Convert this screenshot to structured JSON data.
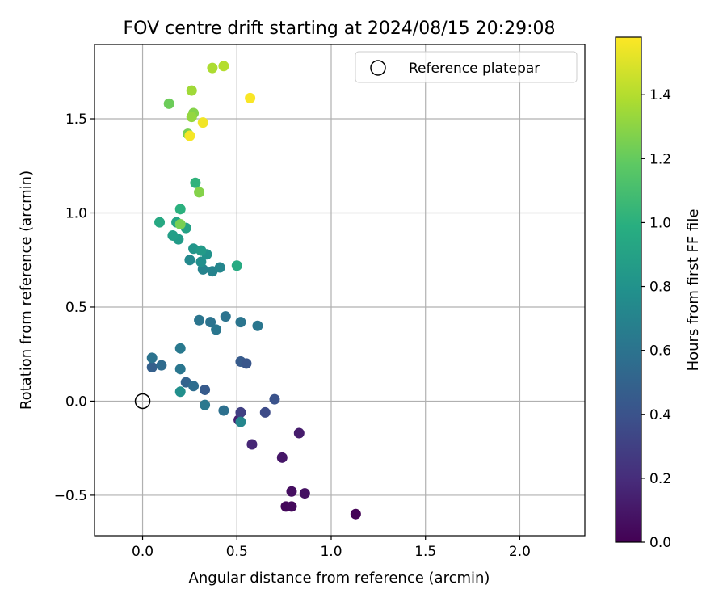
{
  "chart_data": {
    "type": "scatter",
    "title": "FOV centre drift starting at 2024/08/15 20:29:08",
    "xlabel": "Angular distance from reference (arcmin)",
    "ylabel": "Rotation from reference (arcmin)",
    "xlim": [
      -0.255,
      2.345
    ],
    "ylim": [
      -0.715,
      1.895
    ],
    "xticks": [
      0.0,
      0.5,
      1.0,
      1.5,
      2.0
    ],
    "xtick_labels": [
      "0.0",
      "0.5",
      "1.0",
      "1.5",
      "2.0"
    ],
    "yticks": [
      -0.5,
      0.0,
      0.5,
      1.0,
      1.5
    ],
    "ytick_labels": [
      "−0.5",
      "0.0",
      "0.5",
      "1.0",
      "1.5"
    ],
    "grid": true,
    "legend": {
      "placement": "upper right",
      "entries": [
        {
          "label": "Reference platepar",
          "marker": "open-circle"
        }
      ]
    },
    "reference_point": {
      "x": 0.0,
      "y": 0.0
    },
    "colorbar": {
      "label": "Hours from first FF file",
      "colormap": "viridis",
      "range": [
        0.0,
        1.58
      ],
      "ticks": [
        0.0,
        0.2,
        0.4,
        0.6,
        0.8,
        1.0,
        1.2,
        1.4
      ],
      "tick_labels": [
        "0.0",
        "0.2",
        "0.4",
        "0.6",
        "0.8",
        "1.0",
        "1.2",
        "1.4"
      ]
    },
    "points": [
      {
        "x": 1.13,
        "y": -0.6,
        "c": 0.01
      },
      {
        "x": 0.76,
        "y": -0.56,
        "c": 0.03
      },
      {
        "x": 0.79,
        "y": -0.56,
        "c": 0.04
      },
      {
        "x": 0.79,
        "y": -0.48,
        "c": 0.06
      },
      {
        "x": 0.86,
        "y": -0.49,
        "c": 0.07
      },
      {
        "x": 0.74,
        "y": -0.3,
        "c": 0.1
      },
      {
        "x": 0.83,
        "y": -0.17,
        "c": 0.12
      },
      {
        "x": 0.51,
        "y": -0.1,
        "c": 0.14
      },
      {
        "x": 0.58,
        "y": -0.23,
        "c": 0.17
      },
      {
        "x": 0.52,
        "y": -0.06,
        "c": 0.3
      },
      {
        "x": 0.65,
        "y": -0.06,
        "c": 0.36
      },
      {
        "x": 0.7,
        "y": 0.01,
        "c": 0.4
      },
      {
        "x": 0.52,
        "y": 0.21,
        "c": 0.45
      },
      {
        "x": 0.55,
        "y": 0.2,
        "c": 0.42
      },
      {
        "x": 0.33,
        "y": 0.06,
        "c": 0.45
      },
      {
        "x": 0.05,
        "y": 0.18,
        "c": 0.48
      },
      {
        "x": 0.23,
        "y": 0.1,
        "c": 0.5
      },
      {
        "x": 0.1,
        "y": 0.19,
        "c": 0.55
      },
      {
        "x": 0.27,
        "y": 0.08,
        "c": 0.56
      },
      {
        "x": 0.43,
        "y": -0.05,
        "c": 0.58
      },
      {
        "x": 0.05,
        "y": 0.23,
        "c": 0.6
      },
      {
        "x": 0.52,
        "y": -0.11,
        "c": 0.72
      },
      {
        "x": 0.2,
        "y": 0.17,
        "c": 0.62
      },
      {
        "x": 0.33,
        "y": -0.02,
        "c": 0.63
      },
      {
        "x": 0.2,
        "y": 0.28,
        "c": 0.64
      },
      {
        "x": 0.3,
        "y": 0.43,
        "c": 0.61
      },
      {
        "x": 0.36,
        "y": 0.42,
        "c": 0.6
      },
      {
        "x": 0.39,
        "y": 0.38,
        "c": 0.62
      },
      {
        "x": 0.44,
        "y": 0.45,
        "c": 0.6
      },
      {
        "x": 0.52,
        "y": 0.42,
        "c": 0.61
      },
      {
        "x": 0.61,
        "y": 0.4,
        "c": 0.62
      },
      {
        "x": 0.2,
        "y": 0.05,
        "c": 0.78
      },
      {
        "x": 0.32,
        "y": 0.7,
        "c": 0.7
      },
      {
        "x": 0.37,
        "y": 0.69,
        "c": 0.7
      },
      {
        "x": 0.41,
        "y": 0.71,
        "c": 0.72
      },
      {
        "x": 0.25,
        "y": 0.75,
        "c": 0.74
      },
      {
        "x": 0.31,
        "y": 0.74,
        "c": 0.78
      },
      {
        "x": 0.34,
        "y": 0.78,
        "c": 0.8
      },
      {
        "x": 0.27,
        "y": 0.81,
        "c": 0.82
      },
      {
        "x": 0.31,
        "y": 0.8,
        "c": 0.85
      },
      {
        "x": 0.19,
        "y": 0.86,
        "c": 0.86
      },
      {
        "x": 0.16,
        "y": 0.88,
        "c": 0.88
      },
      {
        "x": 0.23,
        "y": 0.92,
        "c": 0.9
      },
      {
        "x": 0.18,
        "y": 0.95,
        "c": 0.92
      },
      {
        "x": 0.09,
        "y": 0.95,
        "c": 0.95
      },
      {
        "x": 0.5,
        "y": 0.72,
        "c": 0.96
      },
      {
        "x": 0.2,
        "y": 1.02,
        "c": 1.0
      },
      {
        "x": 0.28,
        "y": 1.16,
        "c": 1.02
      },
      {
        "x": 0.2,
        "y": 0.94,
        "c": 1.25
      },
      {
        "x": 0.3,
        "y": 1.11,
        "c": 1.28
      },
      {
        "x": 0.14,
        "y": 1.58,
        "c": 1.22
      },
      {
        "x": 0.24,
        "y": 1.42,
        "c": 1.25
      },
      {
        "x": 0.27,
        "y": 1.53,
        "c": 1.28
      },
      {
        "x": 0.26,
        "y": 1.51,
        "c": 1.32
      },
      {
        "x": 0.26,
        "y": 1.65,
        "c": 1.35
      },
      {
        "x": 0.37,
        "y": 1.77,
        "c": 1.38
      },
      {
        "x": 0.43,
        "y": 1.78,
        "c": 1.4
      },
      {
        "x": 0.25,
        "y": 1.41,
        "c": 1.56
      },
      {
        "x": 0.32,
        "y": 1.48,
        "c": 1.55
      },
      {
        "x": 0.57,
        "y": 1.61,
        "c": 1.57
      }
    ]
  }
}
